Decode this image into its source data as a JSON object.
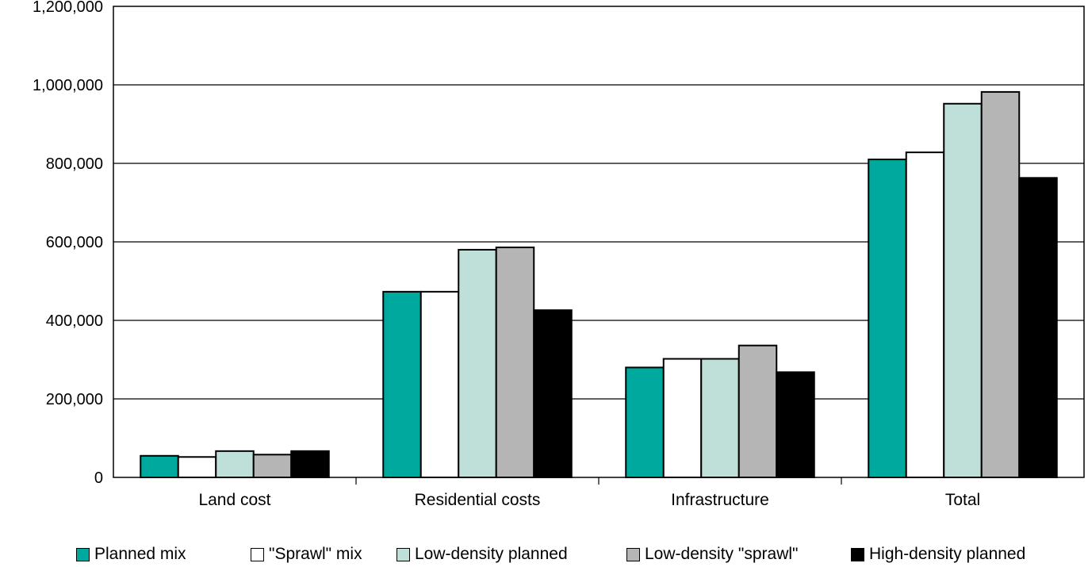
{
  "chart_data": {
    "type": "bar",
    "categories": [
      "Land cost",
      "Residential costs",
      "Infrastructure",
      "Total"
    ],
    "series": [
      {
        "name": "Planned mix",
        "color": "#00A99D",
        "values": [
          55000,
          473000,
          280000,
          810000
        ]
      },
      {
        "name": "\"Sprawl\" mix",
        "color": "#FFFFFF",
        "values": [
          52000,
          473000,
          302000,
          828000
        ]
      },
      {
        "name": "Low-density planned",
        "color": "#BFE0D8",
        "values": [
          67000,
          580000,
          302000,
          952000
        ]
      },
      {
        "name": "Low-density \"sprawl\"",
        "color": "#B5B5B5",
        "values": [
          58000,
          586000,
          336000,
          982000
        ]
      },
      {
        "name": "High-density planned",
        "color": "#000000",
        "values": [
          67000,
          426000,
          268000,
          763000
        ]
      }
    ],
    "ylim": [
      0,
      1200000
    ],
    "yticks": [
      "0",
      "200,000",
      "400,000",
      "600,000",
      "800,000",
      "1,000,000",
      "1,200,000"
    ],
    "grid": true,
    "legend_position": "bottom"
  }
}
